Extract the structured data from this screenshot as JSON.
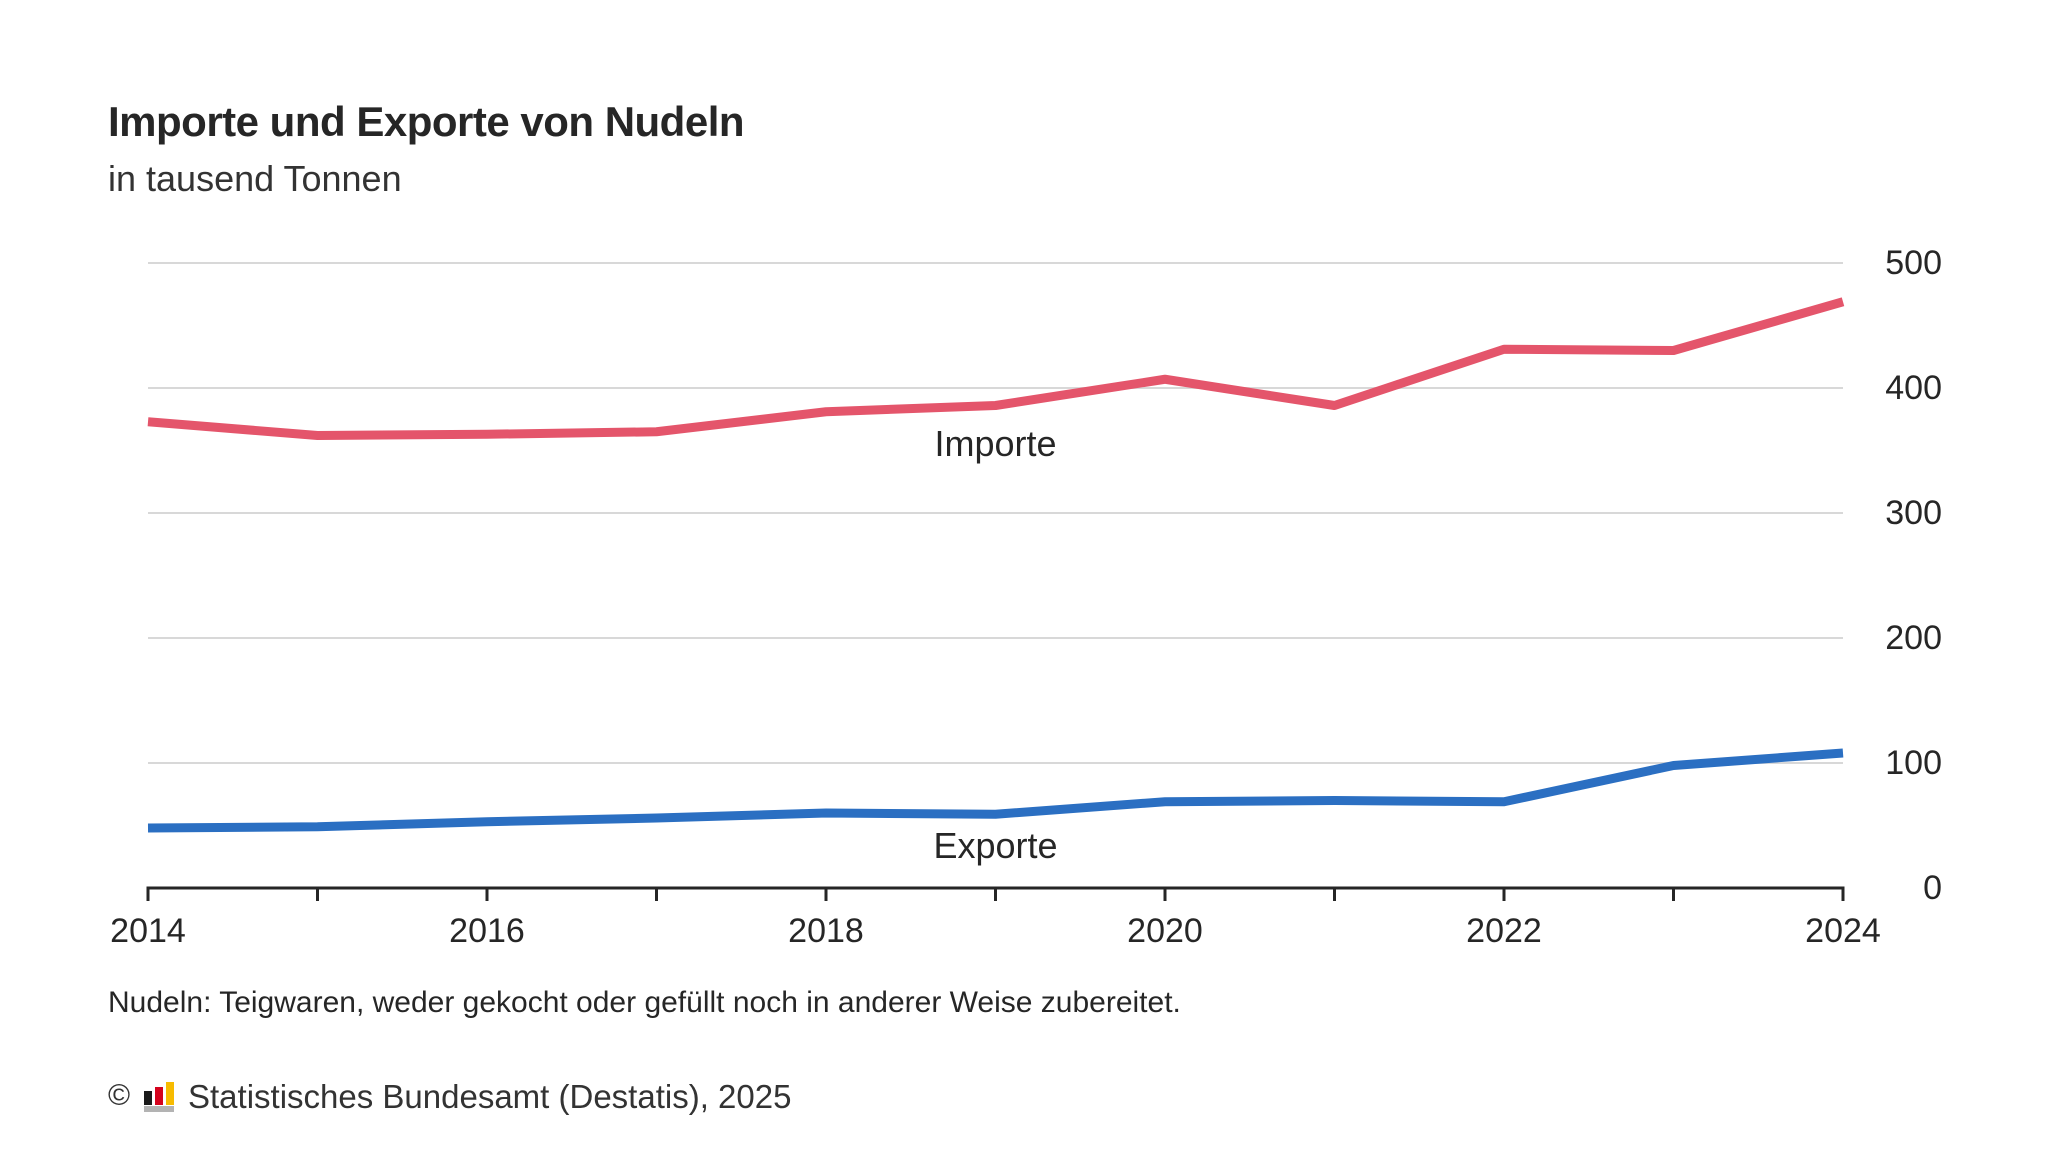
{
  "header": {
    "title": "Importe und Exporte von Nudeln",
    "subtitle": "in tausend Tonnen"
  },
  "chart_data": {
    "type": "line",
    "title": "Importe und Exporte von Nudeln",
    "unit": "in tausend Tonnen",
    "x": [
      2014,
      2015,
      2016,
      2017,
      2018,
      2019,
      2020,
      2021,
      2022,
      2023,
      2024
    ],
    "series": [
      {
        "name": "Importe",
        "color": "#e4556b",
        "values": [
          373,
          362,
          363,
          365,
          381,
          386,
          407,
          386,
          431,
          430,
          469
        ]
      },
      {
        "name": "Exporte",
        "color": "#2b6fc2",
        "values": [
          48,
          49,
          53,
          56,
          60,
          59,
          69,
          70,
          69,
          98,
          108
        ]
      }
    ],
    "xlim": [
      2014,
      2024
    ],
    "ylim": [
      0,
      500
    ],
    "yticks": [
      0,
      100,
      200,
      300,
      400,
      500
    ],
    "xticks_all_years": true,
    "xtick_labels": [
      "2014",
      "2016",
      "2018",
      "2020",
      "2022",
      "2024"
    ],
    "grid": "horizontal",
    "legend_position": "inline-labels",
    "y_axis_side": "right"
  },
  "footnote": {
    "text": "Nudeln: Teigwaren, weder gekocht oder gefüllt noch in anderer Weise zubereitet."
  },
  "source": {
    "copyright_symbol": "©",
    "logo": "destatis-bars-logo",
    "text": "Statistisches Bundesamt (Destatis), 2025"
  },
  "colors": {
    "importe_line": "#e4556b",
    "exporte_line": "#2b6fc2",
    "gridline": "#d8d8d8",
    "axis": "#262626",
    "text": "#262626",
    "logo_black": "#1a1a1a",
    "logo_red": "#d4021d",
    "logo_gold": "#f7bb00",
    "logo_base_gray": "#b3b3b3"
  }
}
